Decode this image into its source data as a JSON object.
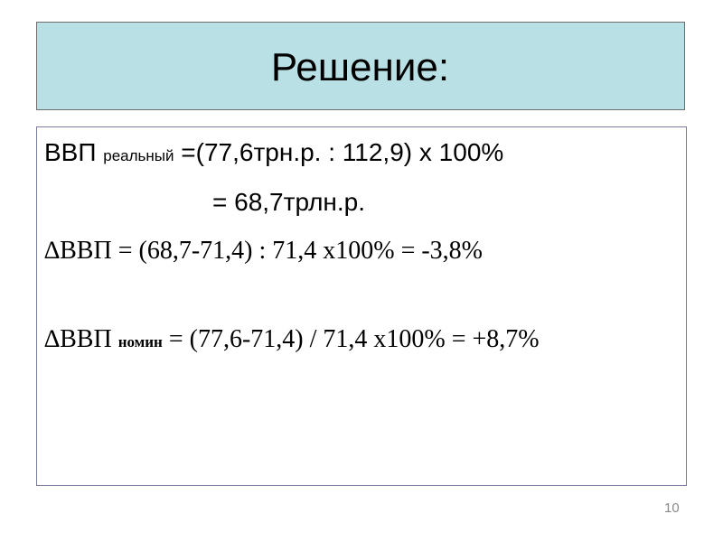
{
  "slide": {
    "title": "Решение:",
    "page_number": "10"
  },
  "content": {
    "line1": {
      "main": "ВВП",
      "sub": "реальный",
      "rest": "=(77,6трн.р. : 112,9) х 100%"
    },
    "line2": {
      "text": "= 68,7трлн.р."
    },
    "line3": {
      "text": "∆ВВП = (68,7-71,4) : 71,4  х100% = -3,8%"
    },
    "line4": {
      "main": "∆ВВП",
      "sub": "номин",
      "rest": "= (77,6-71,4) / 71,4 х100% = +8,7%"
    }
  },
  "colors": {
    "title_background": "#b9e0e4",
    "title_border": "#6d6d6d",
    "content_border": "#7a7a9c",
    "page_number": "#8a8a8a"
  }
}
